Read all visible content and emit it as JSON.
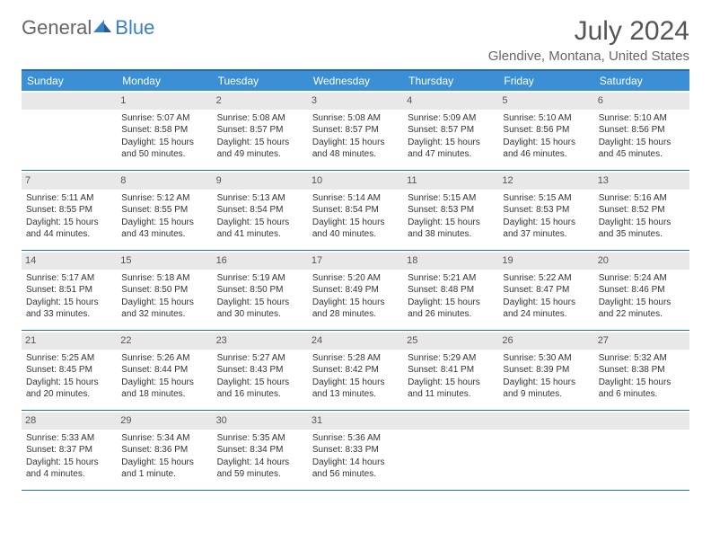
{
  "logo": {
    "general": "General",
    "blue": "Blue"
  },
  "title": "July 2024",
  "location": "Glendive, Montana, United States",
  "colors": {
    "header_bar": "#3b8fd4",
    "border": "#2a6db2",
    "daynum_bg": "#e8e8e8",
    "logo_blue": "#3b7fc4"
  },
  "weekdays": [
    "Sunday",
    "Monday",
    "Tuesday",
    "Wednesday",
    "Thursday",
    "Friday",
    "Saturday"
  ],
  "weeks": [
    [
      {
        "n": "",
        "sr": "",
        "ss": "",
        "dl": ""
      },
      {
        "n": "1",
        "sr": "Sunrise: 5:07 AM",
        "ss": "Sunset: 8:58 PM",
        "dl": "Daylight: 15 hours and 50 minutes."
      },
      {
        "n": "2",
        "sr": "Sunrise: 5:08 AM",
        "ss": "Sunset: 8:57 PM",
        "dl": "Daylight: 15 hours and 49 minutes."
      },
      {
        "n": "3",
        "sr": "Sunrise: 5:08 AM",
        "ss": "Sunset: 8:57 PM",
        "dl": "Daylight: 15 hours and 48 minutes."
      },
      {
        "n": "4",
        "sr": "Sunrise: 5:09 AM",
        "ss": "Sunset: 8:57 PM",
        "dl": "Daylight: 15 hours and 47 minutes."
      },
      {
        "n": "5",
        "sr": "Sunrise: 5:10 AM",
        "ss": "Sunset: 8:56 PM",
        "dl": "Daylight: 15 hours and 46 minutes."
      },
      {
        "n": "6",
        "sr": "Sunrise: 5:10 AM",
        "ss": "Sunset: 8:56 PM",
        "dl": "Daylight: 15 hours and 45 minutes."
      }
    ],
    [
      {
        "n": "7",
        "sr": "Sunrise: 5:11 AM",
        "ss": "Sunset: 8:55 PM",
        "dl": "Daylight: 15 hours and 44 minutes."
      },
      {
        "n": "8",
        "sr": "Sunrise: 5:12 AM",
        "ss": "Sunset: 8:55 PM",
        "dl": "Daylight: 15 hours and 43 minutes."
      },
      {
        "n": "9",
        "sr": "Sunrise: 5:13 AM",
        "ss": "Sunset: 8:54 PM",
        "dl": "Daylight: 15 hours and 41 minutes."
      },
      {
        "n": "10",
        "sr": "Sunrise: 5:14 AM",
        "ss": "Sunset: 8:54 PM",
        "dl": "Daylight: 15 hours and 40 minutes."
      },
      {
        "n": "11",
        "sr": "Sunrise: 5:15 AM",
        "ss": "Sunset: 8:53 PM",
        "dl": "Daylight: 15 hours and 38 minutes."
      },
      {
        "n": "12",
        "sr": "Sunrise: 5:15 AM",
        "ss": "Sunset: 8:53 PM",
        "dl": "Daylight: 15 hours and 37 minutes."
      },
      {
        "n": "13",
        "sr": "Sunrise: 5:16 AM",
        "ss": "Sunset: 8:52 PM",
        "dl": "Daylight: 15 hours and 35 minutes."
      }
    ],
    [
      {
        "n": "14",
        "sr": "Sunrise: 5:17 AM",
        "ss": "Sunset: 8:51 PM",
        "dl": "Daylight: 15 hours and 33 minutes."
      },
      {
        "n": "15",
        "sr": "Sunrise: 5:18 AM",
        "ss": "Sunset: 8:50 PM",
        "dl": "Daylight: 15 hours and 32 minutes."
      },
      {
        "n": "16",
        "sr": "Sunrise: 5:19 AM",
        "ss": "Sunset: 8:50 PM",
        "dl": "Daylight: 15 hours and 30 minutes."
      },
      {
        "n": "17",
        "sr": "Sunrise: 5:20 AM",
        "ss": "Sunset: 8:49 PM",
        "dl": "Daylight: 15 hours and 28 minutes."
      },
      {
        "n": "18",
        "sr": "Sunrise: 5:21 AM",
        "ss": "Sunset: 8:48 PM",
        "dl": "Daylight: 15 hours and 26 minutes."
      },
      {
        "n": "19",
        "sr": "Sunrise: 5:22 AM",
        "ss": "Sunset: 8:47 PM",
        "dl": "Daylight: 15 hours and 24 minutes."
      },
      {
        "n": "20",
        "sr": "Sunrise: 5:24 AM",
        "ss": "Sunset: 8:46 PM",
        "dl": "Daylight: 15 hours and 22 minutes."
      }
    ],
    [
      {
        "n": "21",
        "sr": "Sunrise: 5:25 AM",
        "ss": "Sunset: 8:45 PM",
        "dl": "Daylight: 15 hours and 20 minutes."
      },
      {
        "n": "22",
        "sr": "Sunrise: 5:26 AM",
        "ss": "Sunset: 8:44 PM",
        "dl": "Daylight: 15 hours and 18 minutes."
      },
      {
        "n": "23",
        "sr": "Sunrise: 5:27 AM",
        "ss": "Sunset: 8:43 PM",
        "dl": "Daylight: 15 hours and 16 minutes."
      },
      {
        "n": "24",
        "sr": "Sunrise: 5:28 AM",
        "ss": "Sunset: 8:42 PM",
        "dl": "Daylight: 15 hours and 13 minutes."
      },
      {
        "n": "25",
        "sr": "Sunrise: 5:29 AM",
        "ss": "Sunset: 8:41 PM",
        "dl": "Daylight: 15 hours and 11 minutes."
      },
      {
        "n": "26",
        "sr": "Sunrise: 5:30 AM",
        "ss": "Sunset: 8:39 PM",
        "dl": "Daylight: 15 hours and 9 minutes."
      },
      {
        "n": "27",
        "sr": "Sunrise: 5:32 AM",
        "ss": "Sunset: 8:38 PM",
        "dl": "Daylight: 15 hours and 6 minutes."
      }
    ],
    [
      {
        "n": "28",
        "sr": "Sunrise: 5:33 AM",
        "ss": "Sunset: 8:37 PM",
        "dl": "Daylight: 15 hours and 4 minutes."
      },
      {
        "n": "29",
        "sr": "Sunrise: 5:34 AM",
        "ss": "Sunset: 8:36 PM",
        "dl": "Daylight: 15 hours and 1 minute."
      },
      {
        "n": "30",
        "sr": "Sunrise: 5:35 AM",
        "ss": "Sunset: 8:34 PM",
        "dl": "Daylight: 14 hours and 59 minutes."
      },
      {
        "n": "31",
        "sr": "Sunrise: 5:36 AM",
        "ss": "Sunset: 8:33 PM",
        "dl": "Daylight: 14 hours and 56 minutes."
      },
      {
        "n": "",
        "sr": "",
        "ss": "",
        "dl": ""
      },
      {
        "n": "",
        "sr": "",
        "ss": "",
        "dl": ""
      },
      {
        "n": "",
        "sr": "",
        "ss": "",
        "dl": ""
      }
    ]
  ]
}
